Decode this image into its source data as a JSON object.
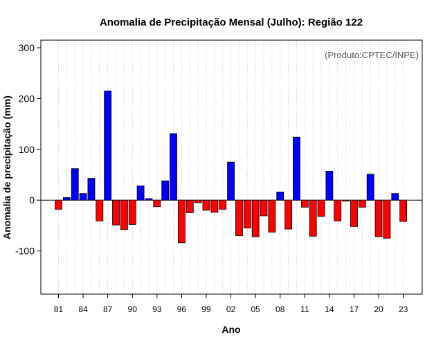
{
  "chart_data": {
    "type": "bar",
    "title": "Anomalia de Precipitação Mensal (Julho): Região 122",
    "credit": "(Produto:CPTEC/INPE)",
    "xlabel": "Ano",
    "ylabel": "Anomalia de precipitação (mm)",
    "ylim": [
      -185,
      315
    ],
    "yticks": [
      -100,
      0,
      100,
      200,
      300
    ],
    "ytick_labels": [
      "-100",
      "0",
      "100",
      "200",
      "300"
    ],
    "x_tick_years": [
      1981,
      1984,
      1987,
      1990,
      1993,
      1996,
      1999,
      2002,
      2005,
      2008,
      2011,
      2014,
      2017,
      2020,
      2023
    ],
    "x_tick_labels": [
      "81",
      "84",
      "87",
      "90",
      "93",
      "96",
      "99",
      "02",
      "05",
      "08",
      "11",
      "14",
      "17",
      "20",
      "23"
    ],
    "grid": "vertical dotted per year",
    "positive_color": "#0000ff",
    "negative_color": "#ff0000",
    "years": [
      1981,
      1982,
      1983,
      1984,
      1985,
      1986,
      1987,
      1988,
      1989,
      1990,
      1991,
      1992,
      1993,
      1994,
      1995,
      1996,
      1997,
      1998,
      1999,
      2000,
      2001,
      2002,
      2003,
      2004,
      2005,
      2006,
      2007,
      2008,
      2009,
      2010,
      2011,
      2012,
      2013,
      2014,
      2015,
      2016,
      2017,
      2018,
      2019,
      2020,
      2021,
      2022,
      2023
    ],
    "values": [
      -18,
      5,
      62,
      13,
      43,
      -41,
      215,
      -49,
      -58,
      -48,
      28,
      3,
      -13,
      38,
      131,
      -84,
      -25,
      -5,
      -20,
      -24,
      -18,
      75,
      -70,
      -55,
      -72,
      -31,
      -63,
      16,
      -57,
      124,
      -14,
      -71,
      -32,
      57,
      -41,
      -2,
      -52,
      -14,
      51,
      -72,
      -75,
      13,
      -42
    ]
  }
}
